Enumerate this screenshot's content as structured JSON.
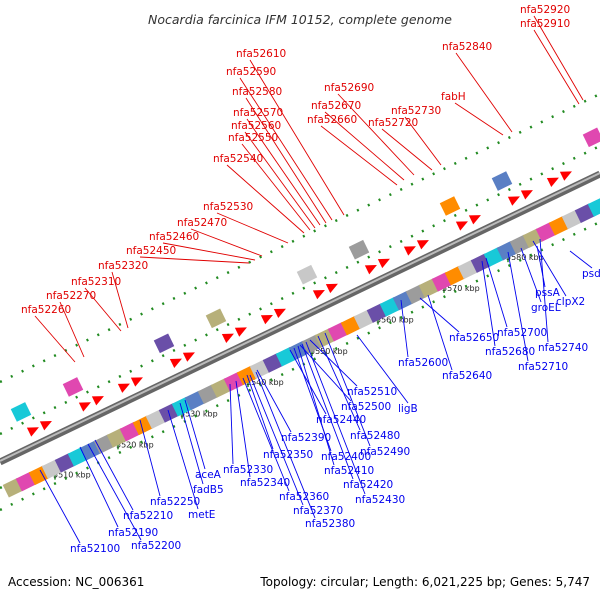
{
  "title": "Nocardia farcinica IFM 10152, complete genome",
  "footer": {
    "accession": "Accession: NC_006361",
    "stats": "Topology: circular; Length: 6,021,225 bp; Genes: 5,747"
  },
  "colors": {
    "forward_label": "#e00000",
    "reverse_label": "#0000ee",
    "forward_arrow": "#ff0000",
    "reverse_arrow": "#0000ff",
    "backbone": "#888888",
    "tick": "#228b22"
  },
  "scale_ticks": [
    "5510 kbp",
    "5520 kbp",
    "5530 kbp",
    "5540 kbp",
    "5550 kbp",
    "5560 kbp",
    "5570 kbp",
    "5580 kbp"
  ],
  "forward_labels": [
    "nfa52920",
    "nfa52910",
    "nfa52840",
    "nfa52610",
    "nfa52590",
    "nfa52580",
    "nfa52690",
    "nfa52570",
    "nfa52670",
    "nfa52560",
    "nfa52660",
    "fabH",
    "nfa52550",
    "nfa52730",
    "nfa52720",
    "nfa52540",
    "nfa52530",
    "nfa52470",
    "nfa52460",
    "nfa52450",
    "nfa52320",
    "nfa52310",
    "nfa52270",
    "nfa52260"
  ],
  "reverse_labels": [
    "psd",
    "nfa52510",
    "ligB",
    "nfa52500",
    "nfa52440",
    "nfa52480",
    "nfa52390",
    "nfa52490",
    "nfa52350",
    "nfa52400",
    "aceA",
    "nfa52330",
    "nfa52410",
    "fadB5",
    "nfa52340",
    "nfa52420",
    "nfa52250",
    "nfa52360",
    "metE",
    "nfa52430",
    "nfa52210",
    "nfa52370",
    "nfa52190",
    "nfa52380",
    "nfa52200",
    "nfa52100",
    "pssA",
    "groEL",
    "clpX2",
    "nfa52700",
    "nfa52650",
    "nfa52740",
    "nfa52680",
    "nfa52710",
    "nfa52600",
    "nfa52640"
  ]
}
